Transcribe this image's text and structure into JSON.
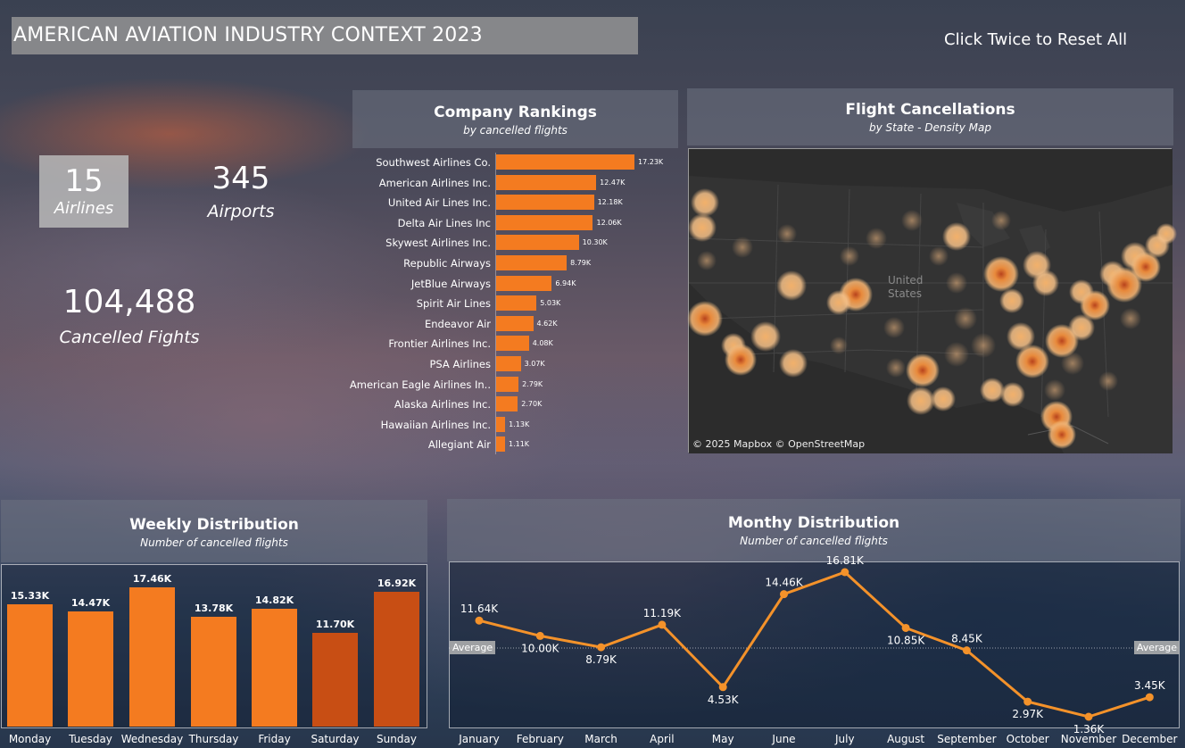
{
  "header": {
    "title": "AMERICAN AVIATION INDUSTRY CONTEXT 2023",
    "reset_label": "Click Twice to Reset All"
  },
  "kpis": {
    "airlines_value": "15",
    "airlines_label": "Airlines",
    "airports_value": "345",
    "airports_label": "Airports",
    "cancelled_value": "104,488",
    "cancelled_label": "Cancelled Fights"
  },
  "map": {
    "title": "Flight Cancellations",
    "subtitle": "by State - Density Map",
    "credit": "© 2025 Mapbox  © OpenStreetMap",
    "country_label_line1": "United",
    "country_label_line2": "States"
  },
  "colors": {
    "bar": "#f47b20",
    "bar_dark": "#c84e14",
    "line": "#f4922a"
  },
  "chart_data": [
    {
      "type": "bar",
      "orientation": "horizontal",
      "title": "Company Rankings",
      "subtitle": "by cancelled flights",
      "categories": [
        "Southwest Airlines Co.",
        "American Airlines Inc.",
        "United Air Lines Inc.",
        "Delta Air Lines Inc",
        "Skywest Airlines Inc.",
        "Republic Airways",
        "JetBlue Airways",
        "Spirit Air Lines",
        "Endeavor Air",
        "Frontier Airlines Inc.",
        "PSA Airlines",
        "American Eagle Airlines In..",
        "Alaska Airlines Inc.",
        "Hawaiian Airlines Inc.",
        "Allegiant Air"
      ],
      "values": [
        17230,
        12470,
        12180,
        12060,
        10300,
        8790,
        6940,
        5030,
        4620,
        4080,
        3070,
        2790,
        2700,
        1130,
        1110
      ],
      "labels": [
        "17.23K",
        "12.47K",
        "12.18K",
        "12.06K",
        "10.30K",
        "8.79K",
        "6.94K",
        "5.03K",
        "4.62K",
        "4.08K",
        "3.07K",
        "2.79K",
        "2.70K",
        "1.13K",
        "1.11K"
      ]
    },
    {
      "type": "bar",
      "title": "Weekly Distribution",
      "subtitle": "Number of cancelled flights",
      "categories": [
        "Monday",
        "Tuesday",
        "Wednesday",
        "Thursday",
        "Friday",
        "Saturday",
        "Sunday"
      ],
      "values": [
        15330,
        14470,
        17460,
        13780,
        14820,
        11700,
        16920
      ],
      "labels": [
        "15.33K",
        "14.47K",
        "17.46K",
        "13.78K",
        "14.82K",
        "11.70K",
        "16.92K"
      ],
      "weekend": [
        false,
        false,
        false,
        false,
        false,
        true,
        true
      ]
    },
    {
      "type": "line",
      "title": "Monthy Distribution",
      "subtitle": "Number of cancelled flights",
      "categories": [
        "January",
        "February",
        "March",
        "April",
        "May",
        "June",
        "July",
        "August",
        "September",
        "October",
        "November",
        "December"
      ],
      "values": [
        11640,
        10000,
        8790,
        11190,
        4530,
        14460,
        16810,
        10850,
        8450,
        2970,
        1360,
        3450
      ],
      "labels": [
        "11.64K",
        "10.00K",
        "8.79K",
        "11.19K",
        "4.53K",
        "14.46K",
        "16.81K",
        "10.85K",
        "8.45K",
        "2.97K",
        "1.36K",
        "3.45K"
      ],
      "average_label": "Average",
      "reference_line": "average"
    }
  ]
}
